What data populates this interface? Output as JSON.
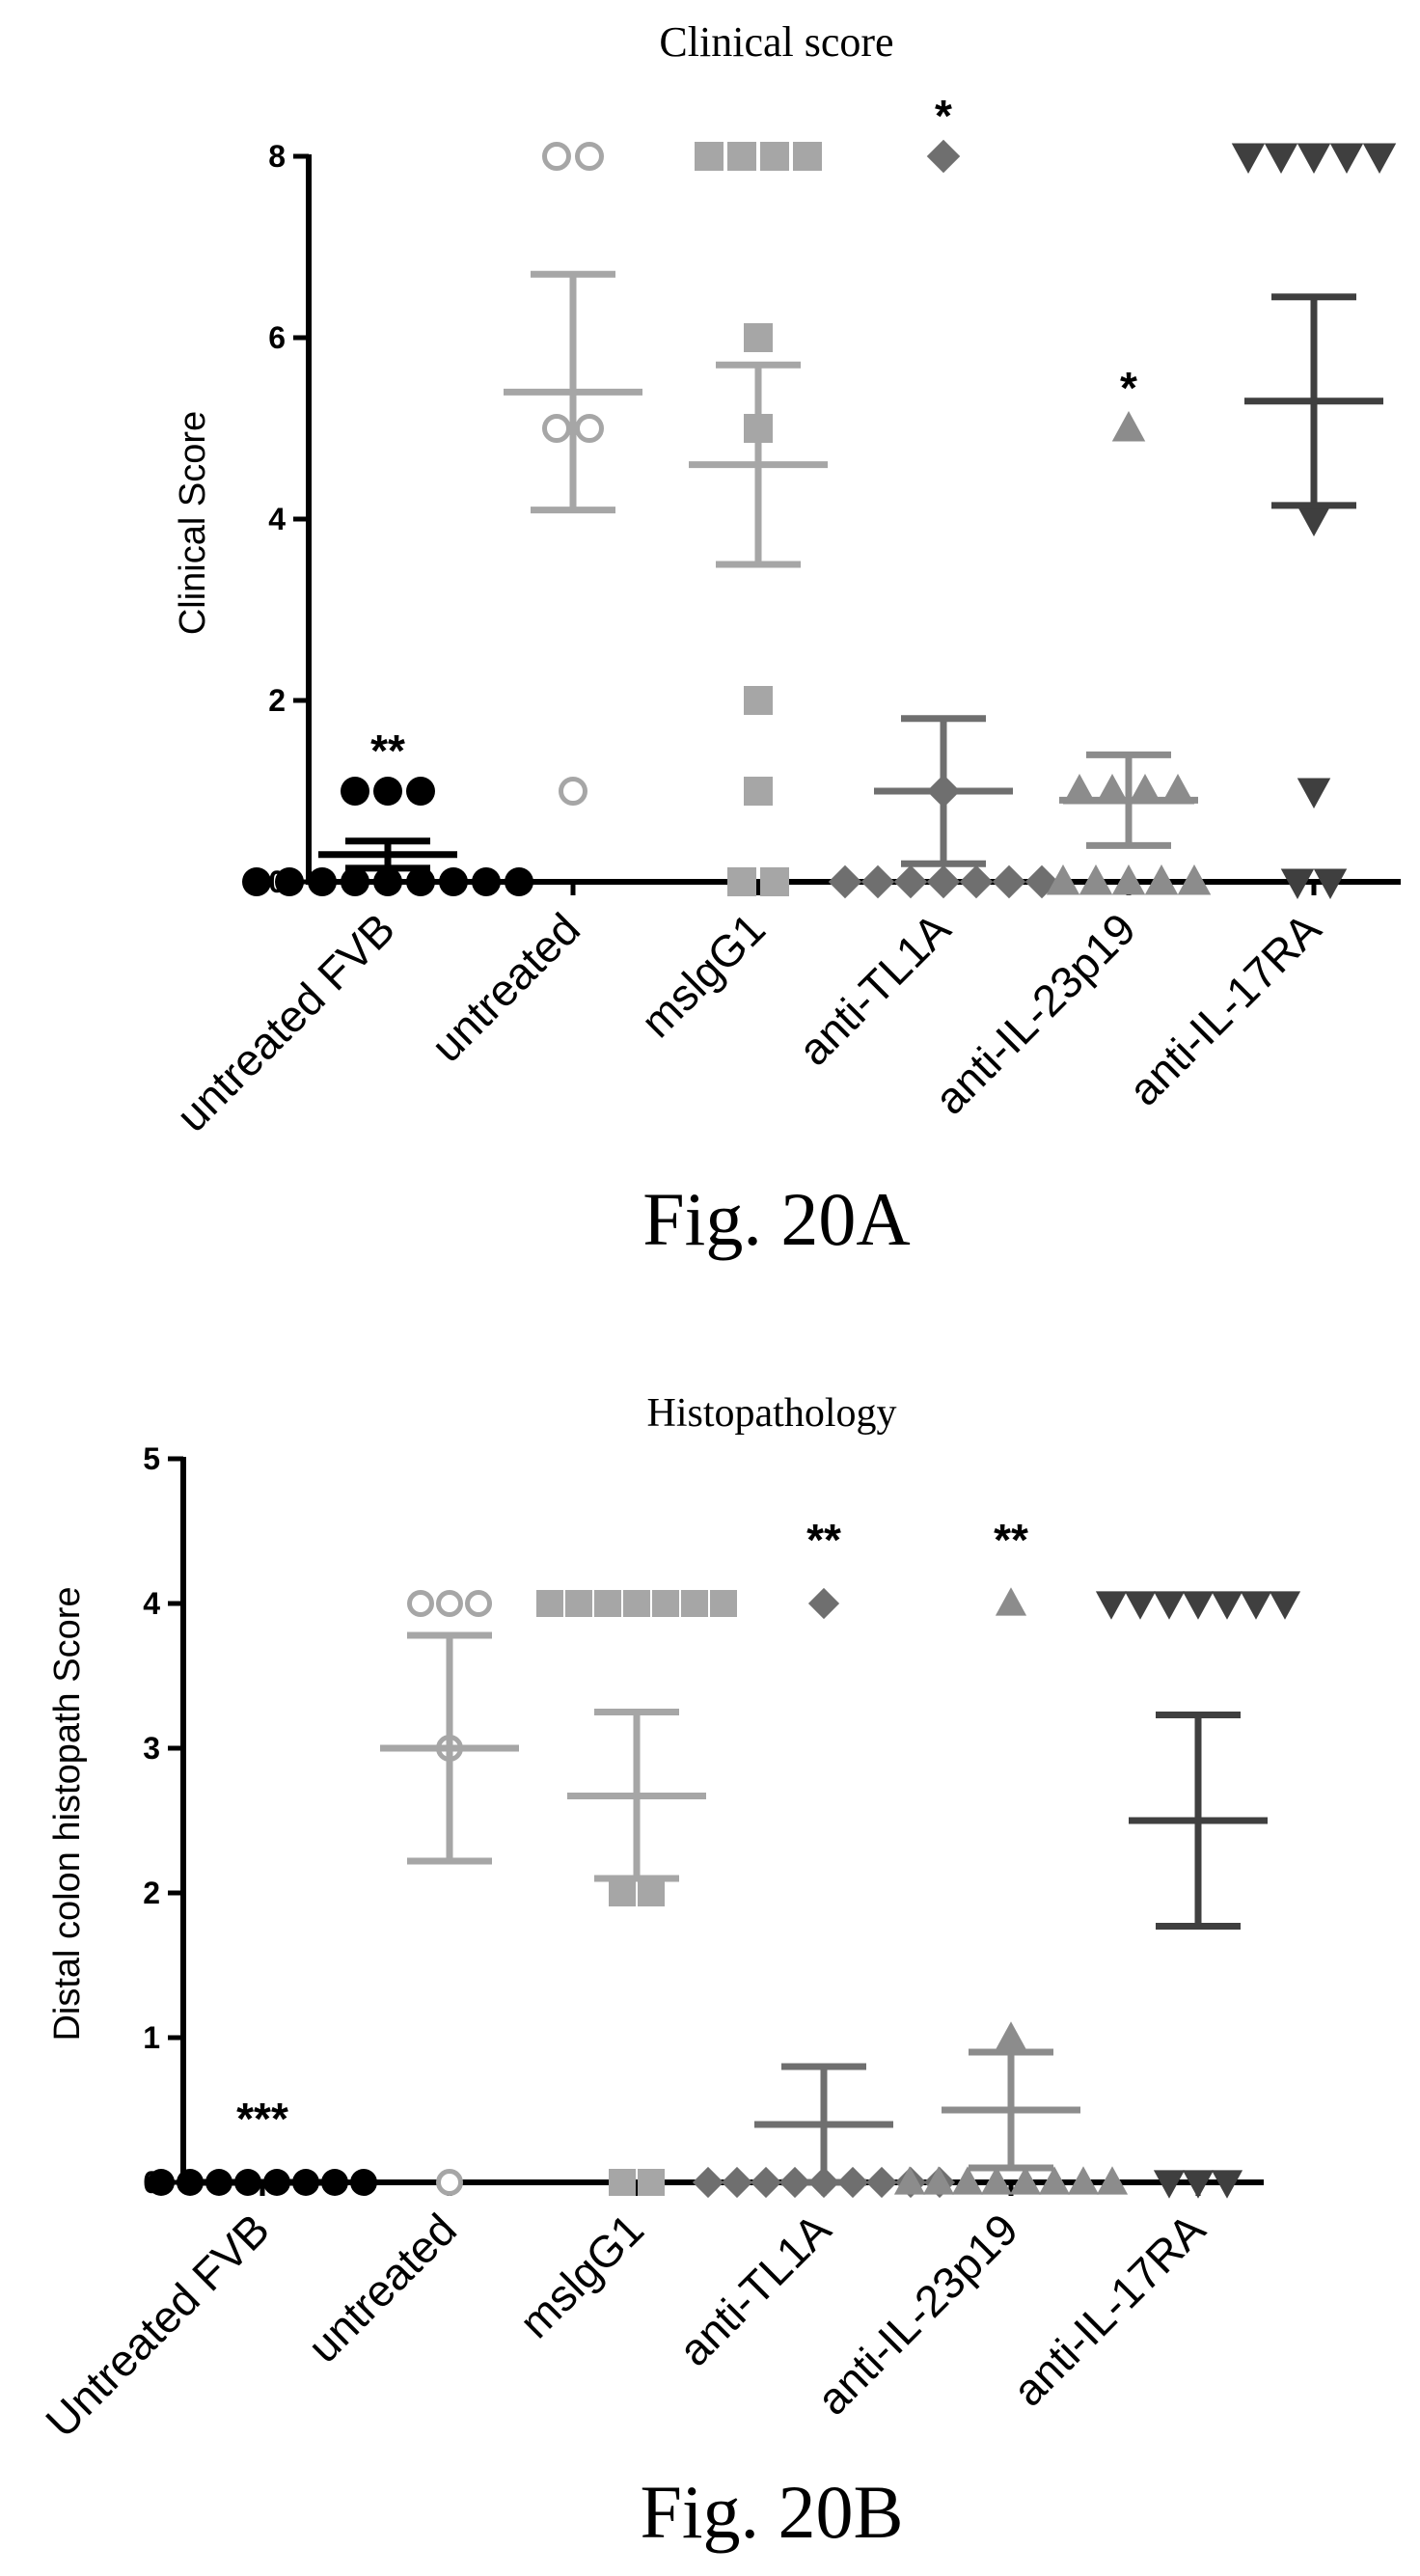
{
  "chart_data": [
    {
      "type": "scatter",
      "title": "Clinical score",
      "caption": "Fig. 20A",
      "ylabel": "Clinical Score",
      "xlabel": "",
      "ylim": [
        0,
        8
      ],
      "yticks": [
        "0",
        "2",
        "4",
        "6",
        "8"
      ],
      "grid": false,
      "categories": [
        "untreated FVB",
        "untreated",
        "mslgG1",
        "anti-TL1A",
        "anti-IL-23p19",
        "anti-IL-17RA"
      ],
      "series": [
        {
          "marker": "circle",
          "color": "#000000",
          "points": [
            0,
            0,
            0,
            0,
            0,
            0,
            0,
            0,
            0,
            1,
            1,
            1
          ],
          "mean": 0.3,
          "err": [
            0.15,
            0.45
          ],
          "annotation": "**"
        },
        {
          "marker": "circle-open",
          "color": "#a6a6a6",
          "points": [
            1,
            5,
            5,
            8,
            8
          ],
          "mean": 5.4,
          "err": [
            4.1,
            6.7
          ],
          "annotation": ""
        },
        {
          "marker": "square",
          "color": "#a6a6a6",
          "points": [
            0,
            0,
            1,
            2,
            5,
            6,
            8,
            8,
            8,
            8
          ],
          "mean": 4.6,
          "err": [
            3.5,
            5.7
          ],
          "annotation": ""
        },
        {
          "marker": "diamond",
          "color": "#6f6f6f",
          "points": [
            0,
            0,
            0,
            0,
            0,
            0,
            0,
            1,
            8
          ],
          "mean": 1.0,
          "err": [
            0.2,
            1.8
          ],
          "annotation": "*"
        },
        {
          "marker": "triangle",
          "color": "#8c8c8c",
          "points": [
            0,
            0,
            0,
            0,
            0,
            1,
            1,
            1,
            1,
            5
          ],
          "mean": 0.9,
          "err": [
            0.4,
            1.4
          ],
          "annotation": "*"
        },
        {
          "marker": "triangle-down",
          "color": "#3f3f3f",
          "points": [
            0,
            0,
            1,
            4,
            8,
            8,
            8,
            8,
            8
          ],
          "mean": 5.3,
          "err": [
            4.15,
            6.45
          ],
          "annotation": ""
        }
      ]
    },
    {
      "type": "scatter",
      "title": "Histopathology",
      "caption": "Fig. 20B",
      "ylabel": "Distal colon histopath Score",
      "xlabel": "",
      "ylim": [
        0,
        5
      ],
      "yticks": [
        "0",
        "1",
        "2",
        "3",
        "4",
        "5"
      ],
      "grid": false,
      "categories": [
        "Untreated FVB",
        "untreated",
        "mslgG1",
        "anti-TL1A",
        "anti-IL-23p19",
        "anti-IL-17RA"
      ],
      "series": [
        {
          "marker": "circle",
          "color": "#000000",
          "points": [
            0,
            0,
            0,
            0,
            0,
            0,
            0,
            0
          ],
          "mean": 0.0,
          "err": [
            0,
            0
          ],
          "annotation": "***"
        },
        {
          "marker": "circle-open",
          "color": "#a6a6a6",
          "points": [
            0,
            3,
            4,
            4,
            4
          ],
          "mean": 3.0,
          "err": [
            2.22,
            3.78
          ],
          "annotation": ""
        },
        {
          "marker": "square",
          "color": "#a6a6a6",
          "points": [
            0,
            0,
            2,
            2,
            4,
            4,
            4,
            4,
            4,
            4,
            4
          ],
          "mean": 2.67,
          "err": [
            2.1,
            3.25
          ],
          "annotation": ""
        },
        {
          "marker": "diamond",
          "color": "#6f6f6f",
          "points": [
            0,
            0,
            0,
            0,
            0,
            0,
            0,
            0,
            0,
            4
          ],
          "mean": 0.4,
          "err": [
            0,
            0.8
          ],
          "annotation": "**"
        },
        {
          "marker": "triangle",
          "color": "#8c8c8c",
          "points": [
            0,
            0,
            0,
            0,
            0,
            0,
            0,
            0,
            1,
            4
          ],
          "mean": 0.5,
          "err": [
            0.1,
            0.9
          ],
          "annotation": "**"
        },
        {
          "marker": "triangle-down",
          "color": "#3f3f3f",
          "points": [
            0,
            0,
            0,
            4,
            4,
            4,
            4,
            4,
            4,
            4
          ],
          "mean": 2.5,
          "err": [
            1.77,
            3.23
          ],
          "annotation": ""
        }
      ]
    }
  ]
}
